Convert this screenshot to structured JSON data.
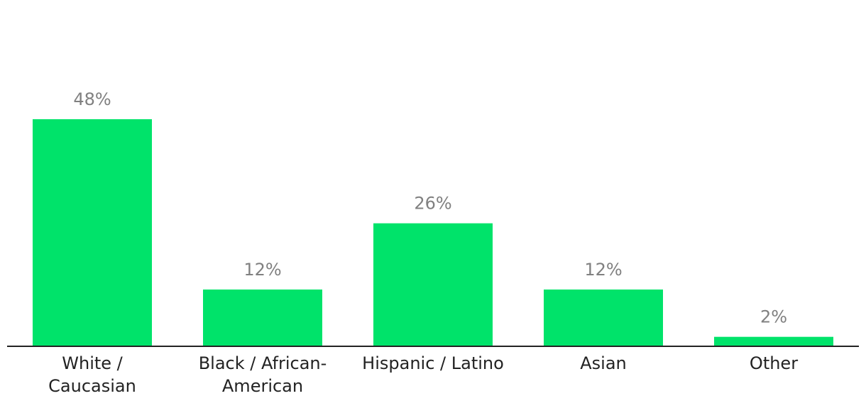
{
  "chart_data": {
    "type": "bar",
    "categories": [
      [
        "White /",
        "Caucasian"
      ],
      [
        "Black / African-",
        "American"
      ],
      [
        "Hispanic / Latino"
      ],
      [
        "Asian"
      ],
      [
        "Other"
      ]
    ],
    "values": [
      48,
      12,
      26,
      12,
      2
    ],
    "data_labels": [
      "48%",
      "12%",
      "26%",
      "12%",
      "2%"
    ],
    "unit": "%",
    "title": "",
    "xlabel": "",
    "ylabel": "",
    "ylim": [
      0,
      48
    ],
    "grid": false,
    "legend": "none",
    "bar_color": "#00e36a",
    "axis_color": "#222222",
    "label_color": "#808080"
  }
}
